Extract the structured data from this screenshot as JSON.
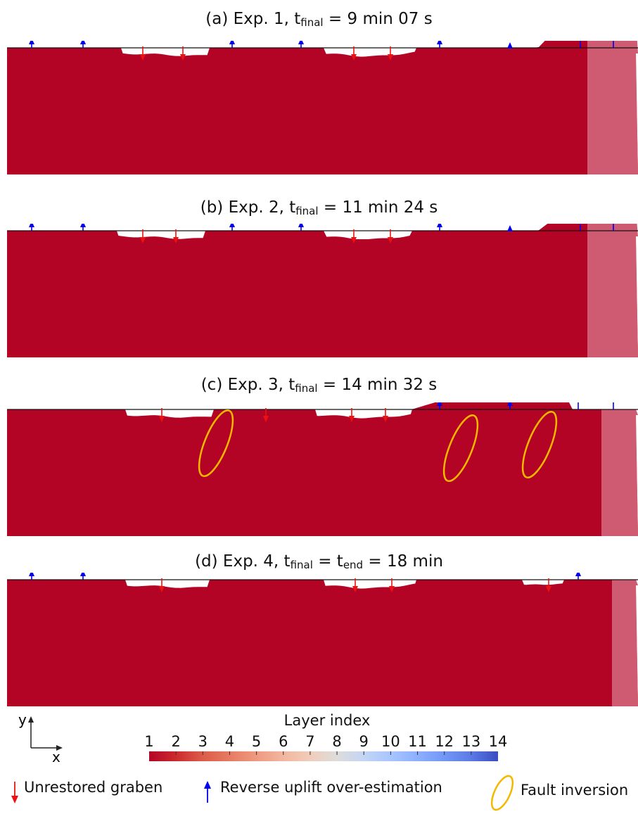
{
  "panels": [
    {
      "letter": "(a)",
      "pre": "Exp. 1, t",
      "sub": "final",
      "mid": "",
      "sub2": "",
      "post": " = 9 min 07 s"
    },
    {
      "letter": "(b)",
      "pre": "Exp. 2, t",
      "sub": "final",
      "mid": "",
      "sub2": "",
      "post": " = 11 min 24 s"
    },
    {
      "letter": "(c)",
      "pre": "Exp. 3, t",
      "sub": "final",
      "mid": "",
      "sub2": "",
      "post": " = 14 min 32 s"
    },
    {
      "letter": "(d)",
      "pre": "Exp. 4, t",
      "sub": "final",
      "mid": " = t",
      "sub2": "end",
      "post": " = 18 min"
    }
  ],
  "axes": {
    "x": "x",
    "y": "y"
  },
  "colorbar": {
    "title": "Layer index",
    "ticks": [
      "1",
      "2",
      "3",
      "4",
      "5",
      "6",
      "7",
      "8",
      "9",
      "10",
      "11",
      "12",
      "13",
      "14"
    ],
    "colors": [
      "#b40426",
      "#cc2a2d",
      "#dc5d4a",
      "#e67b62",
      "#ef9a80",
      "#f2b69f",
      "#f0cdbb",
      "#dedcdb",
      "#c3d5f4",
      "#a8c5fe",
      "#8db0fe",
      "#7396f5",
      "#5b7ae5",
      "#3b4cc0"
    ]
  },
  "legend": {
    "graben": "Unrestored graben",
    "uplift": "Reverse uplift over-estimation",
    "inversion": "Fault inversion"
  },
  "colors": {
    "graben_arrow": "#ee1111",
    "uplift_arrow": "#0000ee",
    "inversion_ellipse": "#f5b800"
  }
}
